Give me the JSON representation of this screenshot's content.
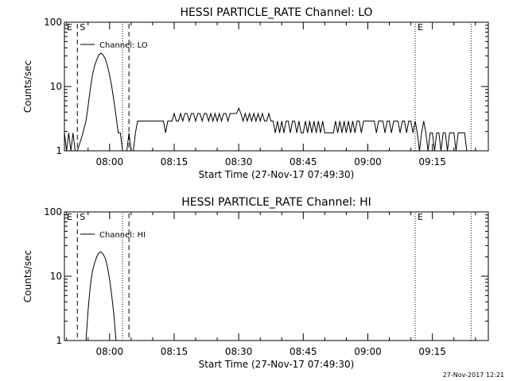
{
  "footer_timestamp": "27-Nov-2017 12:21",
  "chart_data": [
    {
      "type": "line",
      "title": "HESSI PARTICLE_RATE Channel: LO",
      "ylabel": "Counts/sec",
      "xlabel": "Start Time (27-Nov-17 07:49:30)",
      "y_scale": "log",
      "ylim": [
        1,
        100
      ],
      "y_ticks": [
        {
          "value": 1,
          "label": "1"
        },
        {
          "value": 10,
          "label": "10"
        },
        {
          "value": 100,
          "label": "100"
        }
      ],
      "xlim": [
        "07:49:30",
        "09:28:00"
      ],
      "x_ticks": [
        "08:00",
        "08:15",
        "08:30",
        "08:45",
        "09:00",
        "09:15"
      ],
      "legend": {
        "label": "Channel: LO",
        "position": "top-left"
      },
      "markers": [
        {
          "label": "E",
          "time": "07:49:30",
          "style": "none"
        },
        {
          "label": "S",
          "time": "07:52:30",
          "style": "dashed"
        },
        {
          "label": "",
          "time": "08:03:00",
          "style": "dotted"
        },
        {
          "label": "",
          "time": "08:04:30",
          "style": "dashed"
        },
        {
          "label": "E",
          "time": "09:11:00",
          "style": "dotted"
        },
        {
          "label": "",
          "time": "09:24:00",
          "style": "dotted"
        }
      ],
      "series": [
        {
          "name": "Channel: LO",
          "points": [
            [
              "07:49:30",
              1.9
            ],
            [
              "07:50:00",
              1.0
            ],
            [
              "07:50:30",
              1.9
            ],
            [
              "07:51:00",
              1.0
            ],
            [
              "07:51:30",
              1.9
            ],
            [
              "07:52:00",
              1.0
            ],
            [
              "07:52:30",
              1.0
            ],
            [
              "07:53:30",
              1.6
            ],
            [
              "07:54:30",
              2.9
            ],
            [
              "07:55:00",
              5.0
            ],
            [
              "07:55:30",
              9.0
            ],
            [
              "07:56:00",
              15
            ],
            [
              "07:56:30",
              21
            ],
            [
              "07:57:00",
              26
            ],
            [
              "07:57:30",
              31
            ],
            [
              "07:58:00",
              33
            ],
            [
              "07:58:30",
              31
            ],
            [
              "07:59:00",
              27
            ],
            [
              "07:59:30",
              21
            ],
            [
              "08:00:00",
              15
            ],
            [
              "08:00:30",
              10
            ],
            [
              "08:01:00",
              6
            ],
            [
              "08:01:30",
              3.5
            ],
            [
              "08:02:00",
              1.9
            ],
            [
              "08:02:30",
              1.9
            ],
            [
              "08:03:00",
              1.0
            ],
            [
              "08:04:00",
              1.0
            ],
            [
              "08:04:30",
              1.9
            ],
            [
              "08:05:00",
              1.0
            ],
            [
              "08:05:30",
              1.0
            ],
            [
              "08:06:00",
              1.9
            ],
            [
              "08:06:30",
              2.9
            ],
            [
              "08:08:00",
              2.9
            ],
            [
              "08:09:30",
              2.9
            ],
            [
              "08:10:30",
              2.9
            ],
            [
              "08:11:30",
              2.9
            ],
            [
              "08:12:30",
              2.9
            ],
            [
              "08:13:00",
              1.9
            ],
            [
              "08:13:30",
              2.9
            ],
            [
              "08:14:30",
              2.9
            ],
            [
              "08:15:00",
              3.8
            ],
            [
              "08:15:30",
              2.9
            ],
            [
              "08:16:00",
              2.9
            ],
            [
              "08:16:30",
              3.8
            ],
            [
              "08:17:00",
              2.9
            ],
            [
              "08:17:30",
              3.8
            ],
            [
              "08:18:00",
              3.8
            ],
            [
              "08:18:30",
              2.9
            ],
            [
              "08:19:00",
              3.8
            ],
            [
              "08:19:30",
              3.8
            ],
            [
              "08:20:00",
              2.9
            ],
            [
              "08:20:30",
              3.8
            ],
            [
              "08:21:00",
              3.8
            ],
            [
              "08:21:30",
              2.9
            ],
            [
              "08:22:00",
              3.8
            ],
            [
              "08:22:30",
              3.8
            ],
            [
              "08:23:00",
              2.9
            ],
            [
              "08:23:30",
              3.8
            ],
            [
              "08:24:00",
              2.9
            ],
            [
              "08:24:30",
              3.8
            ],
            [
              "08:25:00",
              2.9
            ],
            [
              "08:25:30",
              3.8
            ],
            [
              "08:26:00",
              2.9
            ],
            [
              "08:26:30",
              3.8
            ],
            [
              "08:27:00",
              3.8
            ],
            [
              "08:27:30",
              2.9
            ],
            [
              "08:28:00",
              3.8
            ],
            [
              "08:28:30",
              3.8
            ],
            [
              "08:29:00",
              3.8
            ],
            [
              "08:29:30",
              3.8
            ],
            [
              "08:30:00",
              4.6
            ],
            [
              "08:30:30",
              3.8
            ],
            [
              "08:31:00",
              2.9
            ],
            [
              "08:31:30",
              3.8
            ],
            [
              "08:32:00",
              2.9
            ],
            [
              "08:32:30",
              3.8
            ],
            [
              "08:33:00",
              2.9
            ],
            [
              "08:33:30",
              3.8
            ],
            [
              "08:34:00",
              2.9
            ],
            [
              "08:34:30",
              3.8
            ],
            [
              "08:35:00",
              2.9
            ],
            [
              "08:35:30",
              3.8
            ],
            [
              "08:36:00",
              2.9
            ],
            [
              "08:36:30",
              2.9
            ],
            [
              "08:37:00",
              3.8
            ],
            [
              "08:37:30",
              2.9
            ],
            [
              "08:38:00",
              2.9
            ],
            [
              "08:38:30",
              1.9
            ],
            [
              "08:39:00",
              2.9
            ],
            [
              "08:39:30",
              1.9
            ],
            [
              "08:40:00",
              2.9
            ],
            [
              "08:40:30",
              1.9
            ],
            [
              "08:41:00",
              2.9
            ],
            [
              "08:41:30",
              2.9
            ],
            [
              "08:42:00",
              1.9
            ],
            [
              "08:42:30",
              2.9
            ],
            [
              "08:43:00",
              2.9
            ],
            [
              "08:43:30",
              1.9
            ],
            [
              "08:44:00",
              2.9
            ],
            [
              "08:44:30",
              1.9
            ],
            [
              "08:45:00",
              1.9
            ],
            [
              "08:45:30",
              2.9
            ],
            [
              "08:46:00",
              1.9
            ],
            [
              "08:46:30",
              2.9
            ],
            [
              "08:47:00",
              1.9
            ],
            [
              "08:47:30",
              2.9
            ],
            [
              "08:48:00",
              1.9
            ],
            [
              "08:48:30",
              2.9
            ],
            [
              "08:49:00",
              1.9
            ],
            [
              "08:49:30",
              2.9
            ],
            [
              "08:50:00",
              1.9
            ],
            [
              "08:51:00",
              1.9
            ],
            [
              "08:52:00",
              1.9
            ],
            [
              "08:52:30",
              2.9
            ],
            [
              "08:53:00",
              1.9
            ],
            [
              "08:53:30",
              2.9
            ],
            [
              "08:54:00",
              1.9
            ],
            [
              "08:54:30",
              2.9
            ],
            [
              "08:55:00",
              1.9
            ],
            [
              "08:55:30",
              2.9
            ],
            [
              "08:56:00",
              1.9
            ],
            [
              "08:56:30",
              2.9
            ],
            [
              "08:57:00",
              1.9
            ],
            [
              "08:57:30",
              2.9
            ],
            [
              "08:58:00",
              2.9
            ],
            [
              "08:58:30",
              1.9
            ],
            [
              "08:59:00",
              2.9
            ],
            [
              "08:59:30",
              2.9
            ],
            [
              "09:00:00",
              2.9
            ],
            [
              "09:00:30",
              2.9
            ],
            [
              "09:01:00",
              2.9
            ],
            [
              "09:01:30",
              2.9
            ],
            [
              "09:02:00",
              1.9
            ],
            [
              "09:02:30",
              2.9
            ],
            [
              "09:03:00",
              2.9
            ],
            [
              "09:03:30",
              2.9
            ],
            [
              "09:04:00",
              1.9
            ],
            [
              "09:04:30",
              2.9
            ],
            [
              "09:05:00",
              2.9
            ],
            [
              "09:05:30",
              1.9
            ],
            [
              "09:06:00",
              2.9
            ],
            [
              "09:06:30",
              2.9
            ],
            [
              "09:07:00",
              2.9
            ],
            [
              "09:07:30",
              1.9
            ],
            [
              "09:08:00",
              2.9
            ],
            [
              "09:08:30",
              2.9
            ],
            [
              "09:09:00",
              1.9
            ],
            [
              "09:09:30",
              2.9
            ],
            [
              "09:10:00",
              2.9
            ],
            [
              "09:10:30",
              1.9
            ],
            [
              "09:11:00",
              2.9
            ],
            [
              "09:11:30",
              1.9
            ],
            [
              "09:12:00",
              1.0
            ],
            [
              "09:12:30",
              1.9
            ],
            [
              "09:13:00",
              2.9
            ],
            [
              "09:13:30",
              1.9
            ],
            [
              "09:14:00",
              1.0
            ],
            [
              "09:14:30",
              1.9
            ],
            [
              "09:15:00",
              1.9
            ],
            [
              "09:15:30",
              1.0
            ],
            [
              "09:16:00",
              1.9
            ],
            [
              "09:16:30",
              1.9
            ],
            [
              "09:17:00",
              1.0
            ],
            [
              "09:17:30",
              1.9
            ],
            [
              "09:18:00",
              1.9
            ],
            [
              "09:18:30",
              1.0
            ],
            [
              "09:19:00",
              1.9
            ],
            [
              "09:19:30",
              1.9
            ],
            [
              "09:20:00",
              1.9
            ],
            [
              "09:20:30",
              1.0
            ],
            [
              "09:21:00",
              1.9
            ],
            [
              "09:21:30",
              1.9
            ],
            [
              "09:22:00",
              1.9
            ],
            [
              "09:22:30",
              1.9
            ],
            [
              "09:23:00",
              1.0
            ]
          ]
        }
      ]
    },
    {
      "type": "line",
      "title": "HESSI PARTICLE_RATE Channel: HI",
      "ylabel": "Counts/sec",
      "xlabel": "Start Time (27-Nov-17 07:49:30)",
      "y_scale": "log",
      "ylim": [
        1,
        100
      ],
      "y_ticks": [
        {
          "value": 1,
          "label": "1"
        },
        {
          "value": 10,
          "label": "10"
        },
        {
          "value": 100,
          "label": "100"
        }
      ],
      "xlim": [
        "07:49:30",
        "09:28:00"
      ],
      "x_ticks": [
        "08:00",
        "08:15",
        "08:30",
        "08:45",
        "09:00",
        "09:15"
      ],
      "legend": {
        "label": "Channel: HI",
        "position": "top-left"
      },
      "markers": [
        {
          "label": "E",
          "time": "07:49:30",
          "style": "none"
        },
        {
          "label": "S",
          "time": "07:52:30",
          "style": "dashed"
        },
        {
          "label": "",
          "time": "08:03:00",
          "style": "dotted"
        },
        {
          "label": "",
          "time": "08:04:30",
          "style": "dashed"
        },
        {
          "label": "E",
          "time": "09:11:00",
          "style": "dotted"
        },
        {
          "label": "",
          "time": "09:24:00",
          "style": "dotted"
        }
      ],
      "series": [
        {
          "name": "Channel: HI",
          "points": [
            [
              "07:54:30",
              1.0
            ],
            [
              "07:55:00",
              3.0
            ],
            [
              "07:55:30",
              7.0
            ],
            [
              "07:56:00",
              12
            ],
            [
              "07:56:30",
              16
            ],
            [
              "07:57:00",
              20
            ],
            [
              "07:57:30",
              23
            ],
            [
              "07:58:00",
              24
            ],
            [
              "07:58:30",
              22
            ],
            [
              "07:59:00",
              19
            ],
            [
              "07:59:30",
              14
            ],
            [
              "08:00:00",
              9
            ],
            [
              "08:00:30",
              5
            ],
            [
              "08:01:00",
              2.5
            ],
            [
              "08:01:30",
              1.0
            ]
          ]
        }
      ]
    }
  ]
}
